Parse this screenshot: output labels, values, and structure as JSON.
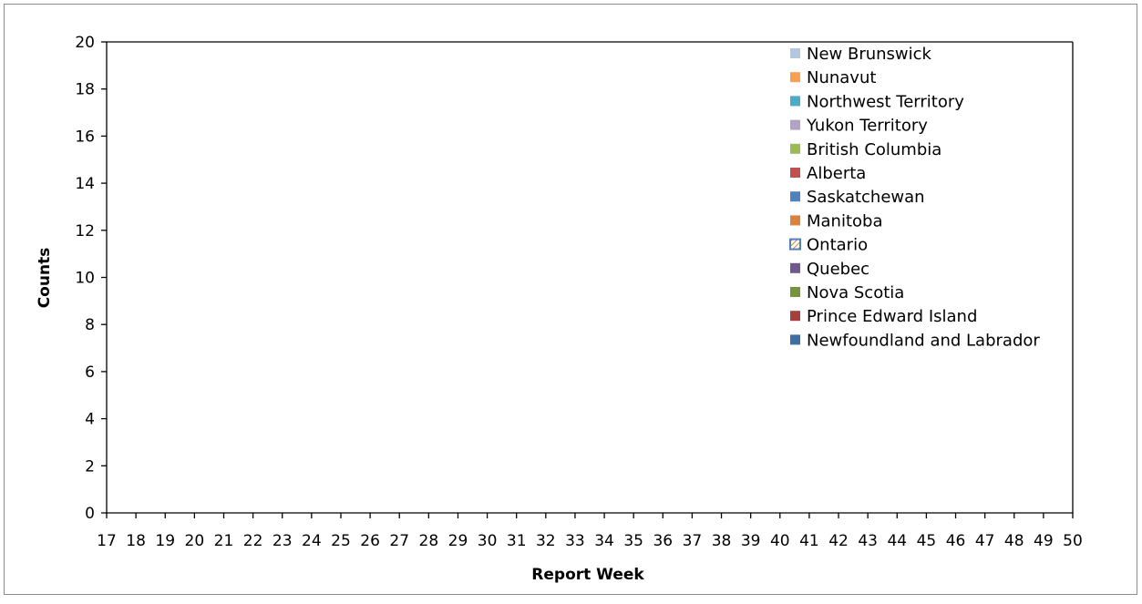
{
  "chart_data": {
    "type": "bar",
    "stacked": true,
    "title": "",
    "xlabel": "Report Week",
    "ylabel": "Counts",
    "ylim": [
      0,
      20
    ],
    "yticks": [
      0,
      2,
      4,
      6,
      8,
      10,
      12,
      14,
      16,
      18,
      20
    ],
    "categories": [
      "17",
      "18",
      "19",
      "20",
      "21",
      "22",
      "23",
      "24",
      "25",
      "26",
      "27",
      "28",
      "29",
      "30",
      "31",
      "32",
      "33",
      "34",
      "35",
      "36",
      "37",
      "38",
      "39",
      "40",
      "41",
      "42",
      "43",
      "44",
      "45",
      "46",
      "47",
      "48",
      "49",
      "50"
    ],
    "grid": false,
    "legend_position": "top-right",
    "series": [
      {
        "name": "New Brunswick",
        "color": "#b4c6e0",
        "values": [
          0,
          0,
          0,
          0,
          0,
          0,
          0,
          0,
          0,
          0,
          0,
          0,
          0,
          0,
          0,
          0,
          0,
          0,
          0,
          0,
          0,
          0,
          0,
          0,
          0,
          0,
          0,
          0,
          0,
          0,
          0,
          0,
          0,
          0
        ]
      },
      {
        "name": "Nunavut",
        "color": "#f8a052",
        "values": [
          0,
          0,
          0,
          0,
          0,
          0,
          0,
          0,
          0,
          0,
          0,
          0,
          0,
          0,
          0,
          0,
          0,
          0,
          0,
          0,
          0,
          0,
          0,
          0,
          0,
          0,
          0,
          0,
          0,
          0,
          0,
          0,
          0,
          0
        ]
      },
      {
        "name": "Northwest Territory",
        "color": "#4bacc6",
        "values": [
          0,
          0,
          0,
          0,
          0,
          0,
          0,
          0,
          0,
          0,
          0,
          0,
          0,
          0,
          0,
          0,
          0,
          0,
          0,
          0,
          0,
          0,
          0,
          0,
          0,
          0,
          0,
          0,
          0,
          0,
          0,
          0,
          0,
          0
        ]
      },
      {
        "name": "Yukon Territory",
        "color": "#b3a2c7",
        "values": [
          0,
          0,
          0,
          0,
          0,
          0,
          0,
          0,
          0,
          0,
          0,
          0,
          0,
          0,
          0,
          0,
          0,
          0,
          0,
          0,
          0,
          0,
          0,
          0,
          0,
          0,
          0,
          0,
          0,
          0,
          0,
          0,
          0,
          0
        ]
      },
      {
        "name": "British Columbia",
        "color": "#9bbb59",
        "values": [
          0,
          0,
          0,
          0,
          0,
          0,
          0,
          0,
          0,
          0,
          0,
          0,
          0,
          0,
          0,
          0,
          0,
          0,
          0,
          0,
          0,
          0,
          0,
          0,
          0,
          0,
          0,
          0,
          0,
          0,
          0,
          0,
          0,
          0
        ]
      },
      {
        "name": "Alberta",
        "color": "#c0504d",
        "values": [
          0,
          0,
          0,
          0,
          0,
          0,
          0,
          0,
          0,
          0,
          0,
          0,
          0,
          0,
          0,
          0,
          0,
          0,
          0,
          0,
          0,
          0,
          0,
          0,
          0,
          0,
          0,
          0,
          0,
          0,
          0,
          0,
          0,
          0
        ]
      },
      {
        "name": "Saskatchewan",
        "color": "#4f81bd",
        "values": [
          0,
          0,
          0,
          0,
          0,
          0,
          0,
          0,
          0,
          0,
          0,
          0,
          0,
          0,
          0,
          0,
          0,
          0,
          0,
          0,
          0,
          0,
          0,
          0,
          0,
          0,
          0,
          0,
          0,
          0,
          0,
          0,
          0,
          0
        ]
      },
      {
        "name": "Manitoba",
        "color": "#d9833d",
        "values": [
          0,
          0,
          0,
          0,
          0,
          0,
          0,
          0,
          0,
          0,
          0,
          0,
          0,
          0,
          0,
          0,
          0,
          0,
          0,
          0,
          0,
          0,
          0,
          0,
          0,
          0,
          0,
          0,
          0,
          0,
          0,
          0,
          0,
          0
        ]
      },
      {
        "name": "Ontario",
        "color": "#4f81bd",
        "pattern": "hatched",
        "values": [
          0,
          0,
          0,
          0,
          0,
          0,
          0,
          0,
          0,
          0,
          0,
          0,
          0,
          0,
          0,
          0,
          0,
          0,
          0,
          0,
          0,
          0,
          0,
          0,
          0,
          0,
          0,
          0,
          0,
          0,
          0,
          0,
          0,
          0
        ]
      },
      {
        "name": "Quebec",
        "color": "#71588f",
        "values": [
          0,
          0,
          0,
          0,
          0,
          0,
          0,
          0,
          0,
          0,
          0,
          0,
          0,
          0,
          0,
          0,
          0,
          0,
          0,
          0,
          0,
          0,
          0,
          0,
          0,
          0,
          0,
          0,
          0,
          0,
          0,
          0,
          0,
          0
        ]
      },
      {
        "name": "Nova Scotia",
        "color": "#77933c",
        "values": [
          0,
          0,
          0,
          0,
          0,
          0,
          0,
          0,
          0,
          0,
          0,
          0,
          0,
          0,
          0,
          0,
          0,
          0,
          0,
          0,
          0,
          0,
          0,
          0,
          0,
          0,
          0,
          0,
          0,
          0,
          0,
          0,
          0,
          0
        ]
      },
      {
        "name": "Prince Edward Island",
        "color": "#a5403c",
        "values": [
          0,
          0,
          0,
          0,
          0,
          0,
          0,
          0,
          0,
          0,
          0,
          0,
          0,
          0,
          0,
          0,
          0,
          0,
          0,
          0,
          0,
          0,
          0,
          0,
          0,
          0,
          0,
          0,
          0,
          0,
          0,
          0,
          0,
          0
        ]
      },
      {
        "name": "Newfoundland and Labrador",
        "color": "#3f6ea3",
        "values": [
          0,
          0,
          0,
          0,
          0,
          0,
          0,
          0,
          0,
          0,
          0,
          0,
          0,
          0,
          0,
          0,
          0,
          0,
          0,
          0,
          0,
          0,
          0,
          0,
          0,
          0,
          0,
          0,
          0,
          0,
          0,
          0,
          0,
          0
        ]
      }
    ]
  }
}
